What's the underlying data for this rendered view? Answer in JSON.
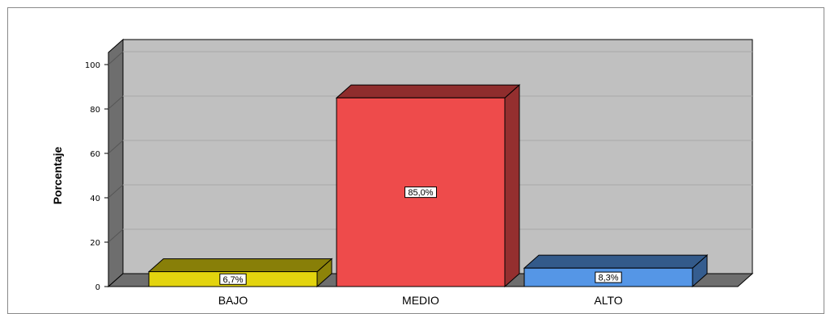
{
  "chart_data": {
    "type": "bar",
    "title": "",
    "xlabel": "",
    "ylabel": "Porcentaje",
    "ylim": [
      0,
      100
    ],
    "yticks": [
      0,
      20,
      40,
      60,
      80,
      100
    ],
    "grid": true,
    "categories": [
      "BAJO",
      "MEDIO",
      "ALTO"
    ],
    "values": [
      6.7,
      85.0,
      8.3
    ],
    "data_labels": [
      "6,7%",
      "85,0%",
      "8,3%"
    ],
    "colors": {
      "bars": [
        "#e3d40e",
        "#ee4b4b",
        "#5596e6"
      ],
      "plot_back": "#c0c0c0",
      "walls": "#6e6e6e"
    }
  }
}
